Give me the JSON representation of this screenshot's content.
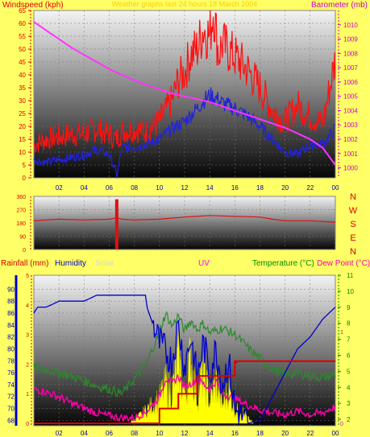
{
  "colors": {
    "bg": "#ffff66",
    "wind_avg": "#2222dd",
    "wind_gust": "#ff1111",
    "barometer": "#ff33ff",
    "direction": "#dd1111",
    "rain": "#dd0000",
    "humidity": "#0000cc",
    "solar": "#d0d0c0",
    "uv": "#ff33ff",
    "uv_fill": "#ffff00",
    "temperature": "#2a8a2a",
    "dew_point": "#ff00aa",
    "axis_blue": "#0000aa",
    "axis_green": "#008800",
    "axis_red": "#dd0000",
    "axis_magenta": "#cc00cc"
  },
  "header": {
    "title": "Weather graphs last 24 hours 18 March 2004"
  },
  "chart_data": [
    {
      "type": "line",
      "x_ticks": [
        "02",
        "04",
        "06",
        "08",
        "10",
        "12",
        "14",
        "16",
        "18",
        "20",
        "22",
        "00"
      ],
      "xlim": [
        0,
        24
      ],
      "left_axis": {
        "label": "Windspeed (kph)",
        "ticks": [
          0,
          5,
          10,
          15,
          20,
          25,
          30,
          35,
          40,
          45,
          50,
          55,
          60,
          65
        ],
        "ylim": [
          0,
          65
        ]
      },
      "right_axis": {
        "label": "Barometer (mb)",
        "ticks": [
          1000,
          1001,
          1002,
          1003,
          1004,
          1005,
          1006,
          1007,
          1008,
          1009,
          1010
        ],
        "ylim": [
          999.3,
          1011
        ]
      },
      "series": [
        {
          "role": "avg_wind",
          "axis": "left",
          "x": [
            0,
            1,
            2,
            3,
            4,
            5,
            5.5,
            6,
            6.5,
            6.6,
            7,
            8,
            9,
            10,
            11,
            12,
            13,
            13.5,
            14,
            14.5,
            15,
            16,
            17,
            18,
            19,
            20,
            21,
            22,
            23,
            24
          ],
          "values": [
            7,
            6,
            7,
            8,
            9,
            11,
            10,
            9,
            3,
            0,
            12,
            12,
            13,
            15,
            19,
            22,
            27,
            30,
            32,
            31,
            29,
            27,
            24,
            20,
            15,
            10,
            9,
            13,
            13,
            19
          ]
        },
        {
          "role": "gust",
          "axis": "left",
          "x": [
            0,
            1,
            2,
            3,
            4,
            5,
            6,
            6.5,
            7,
            8,
            9,
            10,
            11,
            11.5,
            12,
            12.5,
            13,
            13.5,
            14,
            14.3,
            14.7,
            15,
            16,
            17,
            18,
            19,
            20,
            21,
            22,
            23,
            24
          ],
          "values": [
            13,
            15,
            16,
            17,
            17,
            19,
            17,
            15,
            18,
            19,
            18,
            22,
            30,
            38,
            41,
            48,
            50,
            58,
            55,
            66,
            48,
            52,
            47,
            42,
            35,
            26,
            22,
            28,
            24,
            21,
            46
          ]
        },
        {
          "role": "barometer",
          "axis": "right",
          "x": [
            0,
            1,
            2,
            3,
            4,
            5,
            6,
            7,
            8,
            9,
            10,
            11,
            12,
            13,
            14,
            15,
            16,
            17,
            18,
            19,
            20,
            21,
            22,
            23,
            24
          ],
          "values": [
            1010.2,
            1009.6,
            1009.0,
            1008.4,
            1007.9,
            1007.4,
            1006.9,
            1006.5,
            1006.1,
            1005.8,
            1005.5,
            1005.2,
            1005.0,
            1004.8,
            1004.6,
            1004.3,
            1004.0,
            1003.7,
            1003.4,
            1003.1,
            1002.8,
            1002.4,
            1002.0,
            1001.4,
            1000.2
          ]
        }
      ]
    },
    {
      "type": "line",
      "x_ticks": [
        "02",
        "04",
        "06",
        "08",
        "10",
        "12",
        "14",
        "16",
        "18",
        "20",
        "22",
        "00"
      ],
      "xlim": [
        0,
        24
      ],
      "left_axis": {
        "ticks": [
          0,
          90,
          180,
          270,
          360
        ],
        "ylim": [
          0,
          360
        ]
      },
      "right_labels": [
        "N",
        "W",
        "S",
        "E",
        "N"
      ],
      "series": [
        {
          "role": "wind_direction",
          "x": [
            0,
            2,
            4,
            6,
            6.6,
            7,
            8,
            10,
            12,
            14,
            16,
            18,
            19,
            20,
            22,
            24
          ],
          "values": [
            195,
            205,
            200,
            205,
            215,
            205,
            200,
            205,
            220,
            230,
            225,
            220,
            205,
            195,
            195,
            185
          ]
        }
      ],
      "spike": {
        "x": 6.6,
        "from": 0,
        "to": 340
      }
    },
    {
      "type": "line",
      "x_ticks": [
        "02",
        "04",
        "06",
        "08",
        "10",
        "12",
        "14",
        "16",
        "18",
        "20",
        "22",
        "00"
      ],
      "xlim": [
        0,
        24
      ],
      "legend": [
        "Rainfall (mm)",
        "Humidity",
        "Solar",
        "UV",
        "Temperature (°C)",
        "Dew Point (°C)"
      ],
      "axes": {
        "rain": {
          "ticks": [
            0,
            1,
            2,
            3,
            4,
            5
          ],
          "ylim": [
            0,
            5
          ]
        },
        "humidity": {
          "ticks": [
            68,
            70,
            72,
            74,
            76,
            78,
            80,
            82,
            84,
            86,
            88,
            90
          ],
          "ylim": [
            67.5,
            91
          ]
        },
        "uv": {
          "ticks": [
            0,
            1
          ],
          "ylim": [
            0,
            1
          ]
        },
        "temperature": {
          "ticks": [
            2,
            3,
            4,
            5,
            6,
            7,
            8,
            9,
            10,
            11
          ],
          "ylim": [
            1.6,
            11
          ]
        }
      },
      "series": [
        {
          "role": "humidity",
          "axis": "humidity",
          "x": [
            0,
            0.3,
            1,
            2,
            3,
            4,
            5,
            6,
            7,
            8,
            8.9,
            9,
            9.5,
            10,
            11,
            11.5,
            12,
            12.5,
            13,
            13.5,
            14,
            14.5,
            15,
            15.5,
            16,
            17,
            18,
            19,
            20,
            21,
            22,
            23,
            24
          ],
          "values": [
            86,
            87,
            87,
            88,
            88,
            88,
            89,
            89,
            89,
            89,
            89,
            87,
            84,
            81,
            78,
            84,
            77,
            82,
            75,
            81,
            76,
            80,
            74,
            78,
            70,
            67.5,
            68,
            72,
            76,
            80,
            82,
            85,
            87
          ]
        },
        {
          "role": "temperature",
          "axis": "temperature",
          "x": [
            0,
            1,
            2,
            3,
            4,
            5,
            6,
            7,
            8,
            9,
            10,
            10.5,
            11,
            11.5,
            12,
            12.5,
            13,
            13.5,
            14,
            15,
            16,
            17,
            18,
            19,
            20,
            21,
            22,
            23,
            24
          ],
          "values": [
            5.2,
            5.1,
            4.9,
            4.7,
            4.4,
            4.1,
            3.9,
            3.6,
            4.5,
            5.5,
            7.5,
            8.6,
            7.8,
            8.5,
            7.5,
            8.2,
            7.6,
            8.0,
            7.4,
            7.7,
            7.3,
            6.5,
            5.8,
            5.1,
            4.8,
            4.9,
            4.7,
            4.6,
            4.8
          ]
        },
        {
          "role": "dew_point",
          "axis": "temperature",
          "x": [
            0,
            1,
            2,
            3,
            4,
            5,
            6,
            7,
            8,
            9,
            10,
            10.5,
            11,
            11.5,
            12,
            13,
            14,
            14.5,
            15,
            16,
            17,
            18,
            19,
            20,
            21,
            22,
            23,
            24
          ],
          "values": [
            3.9,
            3.7,
            3.4,
            3.0,
            2.7,
            2.4,
            2.2,
            2.1,
            2.1,
            2.5,
            3.4,
            4.6,
            4.2,
            4.7,
            4.0,
            4.5,
            3.9,
            4.4,
            3.6,
            3.3,
            2.9,
            2.6,
            2.4,
            2.3,
            2.5,
            2.3,
            2.4,
            2.8
          ]
        },
        {
          "role": "uv",
          "axis": "uv",
          "x": [
            7.5,
            8,
            8.5,
            9,
            9.5,
            10,
            10.5,
            11,
            11.5,
            12,
            12.5,
            13,
            13.5,
            14,
            14.5,
            15,
            15.5,
            16,
            16.5,
            17,
            17.5
          ],
          "values": [
            0,
            0.05,
            0.12,
            0.2,
            0.28,
            0.36,
            0.55,
            0.45,
            0.9,
            0.4,
            0.95,
            0.35,
            0.8,
            0.3,
            0.6,
            0.25,
            0.5,
            0.18,
            0.2,
            0.08,
            0
          ]
        },
        {
          "role": "rainfall",
          "axis": "rain",
          "x": [
            0,
            10,
            10,
            11.5,
            11.5,
            13,
            13,
            16,
            16,
            24
          ],
          "values": [
            0,
            0,
            0.5,
            0.5,
            1.0,
            1.0,
            1.6,
            1.6,
            2.1,
            2.1
          ]
        }
      ]
    }
  ]
}
